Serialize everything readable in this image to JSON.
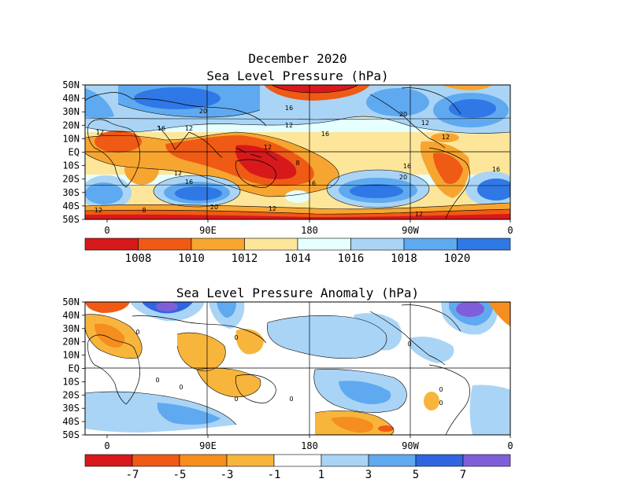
{
  "slp_panel": {
    "title_line1": "December 2020",
    "title_line2": "Sea Level Pressure (hPa)",
    "lat_ticks": [
      "50N",
      "40N",
      "30N",
      "20N",
      "10N",
      "EQ",
      "10S",
      "20S",
      "30S",
      "40S",
      "50S"
    ],
    "lon_ticks": [
      "0",
      "90E",
      "180",
      "90W",
      "0"
    ],
    "colorbar": {
      "colors": [
        "#d7191c",
        "#ef5a14",
        "#f7a531",
        "#fde69a",
        "#e6ffff",
        "#a9d4f5",
        "#5fa9f0",
        "#2f78e5"
      ],
      "labels": [
        "1008",
        "1010",
        "1012",
        "1014",
        "1016",
        "1018",
        "1020"
      ]
    },
    "contour_labels": [
      "12",
      "16",
      "20",
      "12",
      "16",
      "12",
      "16",
      "12",
      "8",
      "12",
      "16",
      "16",
      "20",
      "20",
      "16",
      "12",
      "12",
      "12",
      "8",
      "12",
      "20",
      "16",
      "12"
    ]
  },
  "anomaly_panel": {
    "title": "Sea Level Pressure Anomaly (hPa)",
    "lat_ticks": [
      "50N",
      "40N",
      "30N",
      "20N",
      "10N",
      "EQ",
      "10S",
      "20S",
      "30S",
      "40S",
      "50S"
    ],
    "lon_ticks": [
      "0",
      "90E",
      "180",
      "90W",
      "0"
    ],
    "colorbar": {
      "colors": [
        "#d7191c",
        "#ef5a14",
        "#f58e1e",
        "#f8b53c",
        "#ffffff",
        "#a9d4f5",
        "#5fa9f0",
        "#2f66e0",
        "#7f5fd9"
      ],
      "labels": [
        "-7",
        "-5",
        "-3",
        "-1",
        "1",
        "3",
        "5",
        "7"
      ]
    },
    "contour_labels": [
      "0",
      "0",
      "0",
      "0",
      "0",
      "0",
      "0",
      "0",
      "0"
    ]
  }
}
